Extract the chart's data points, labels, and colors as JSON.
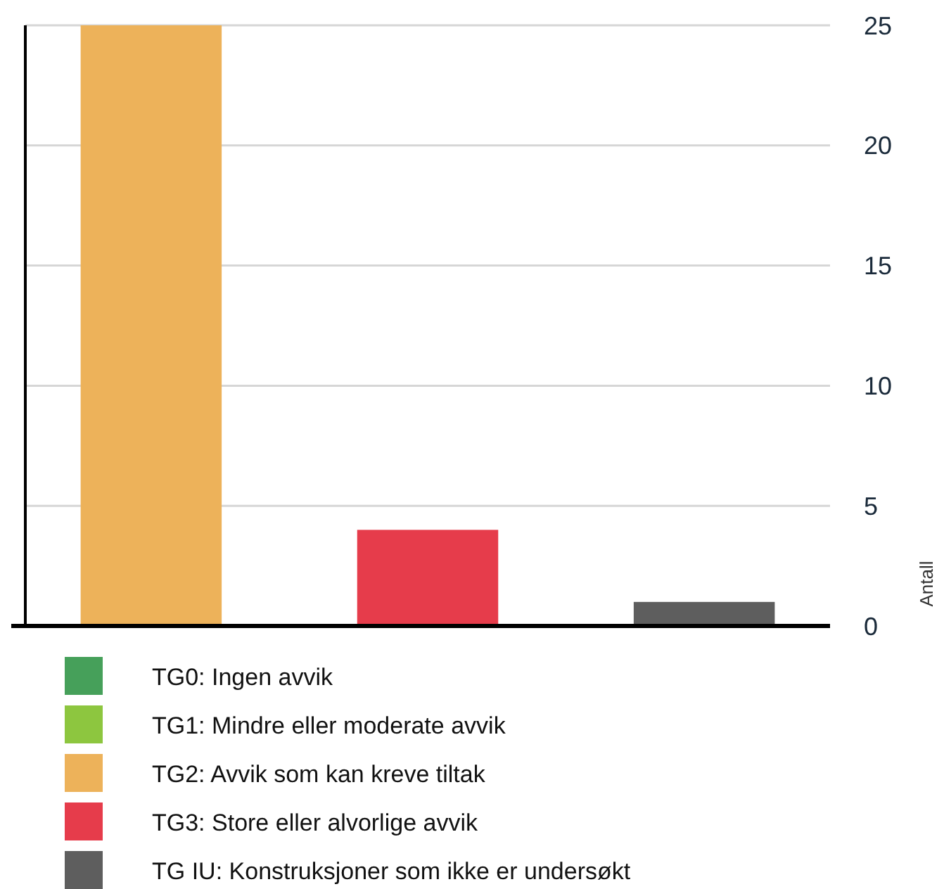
{
  "chart_data": {
    "type": "bar",
    "ylabel": "Antall",
    "categories": [
      null,
      null,
      null
    ],
    "series": [
      {
        "name": "TG0: Ingen avvik",
        "color": "#46a05a",
        "values": [
          null,
          null,
          null
        ]
      },
      {
        "name": "TG1: Mindre eller moderate avvik",
        "color": "#8dc63f",
        "values": [
          null,
          null,
          null
        ]
      },
      {
        "name": "TG2: Avvik som kan kreve tiltak",
        "color": "#edb25a",
        "values": [
          25,
          null,
          null
        ]
      },
      {
        "name": "TG3: Store eller alvorlige avvik",
        "color": "#e63c4b",
        "values": [
          null,
          4,
          null
        ]
      },
      {
        "name": "TG IU: Konstruksjoner som ikke er undersøkt",
        "color": "#5e5e5e",
        "values": [
          null,
          null,
          1
        ]
      }
    ],
    "ylim": [
      0,
      25
    ],
    "yticks": [
      0,
      5,
      10,
      15,
      20,
      25
    ],
    "grid": "y",
    "legend": "bottom"
  }
}
